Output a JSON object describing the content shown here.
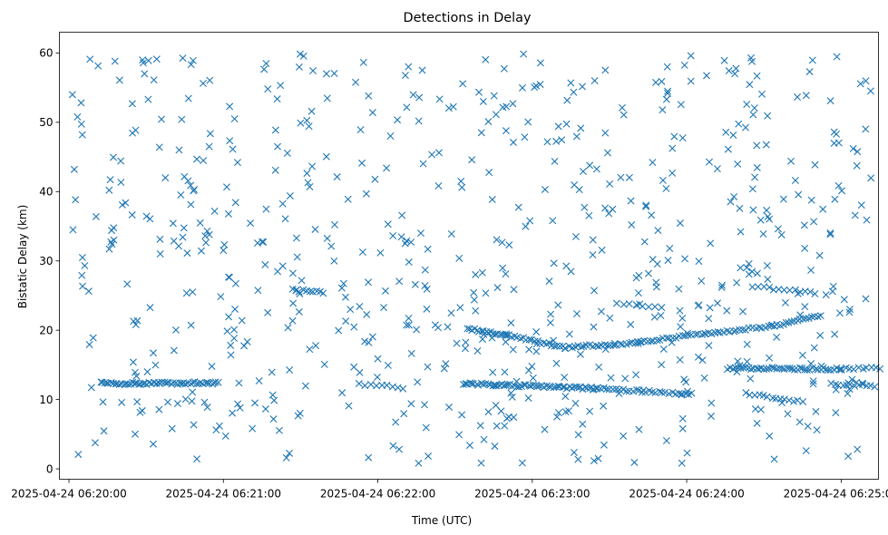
{
  "chart_data": {
    "type": "scatter",
    "title": "Detections in Delay",
    "xlabel": "Time (UTC)",
    "ylabel": "Bistatic Delay (km)",
    "x_unit": "seconds after 2025-04-24 06:20:00",
    "xlim": [
      -3.7,
      314.5
    ],
    "ylim": [
      -1.5,
      63.0
    ],
    "xticks": [
      {
        "value": 0,
        "label": "2025-04-24 06:20:00"
      },
      {
        "value": 60,
        "label": "2025-04-24 06:21:00"
      },
      {
        "value": 120,
        "label": "2025-04-24 06:22:00"
      },
      {
        "value": 180,
        "label": "2025-04-24 06:23:00"
      },
      {
        "value": 240,
        "label": "2025-04-24 06:24:00"
      },
      {
        "value": 300,
        "label": "2025-04-24 06:25:00"
      }
    ],
    "yticks": [
      0,
      10,
      20,
      30,
      40,
      50,
      60
    ],
    "grid": false,
    "marker": "x",
    "series_color": "#1f77b4",
    "series": [
      {
        "name": "",
        "tracks": [
          {
            "x": [
              13,
              58
            ],
            "y": [
              12.3,
              12.4
            ],
            "n": 55
          },
          {
            "x": [
              153,
              205
            ],
            "y": [
              12.3,
              11.6
            ],
            "n": 60
          },
          {
            "x": [
              205,
              242
            ],
            "y": [
              11.6,
              10.8
            ],
            "n": 30
          },
          {
            "x": [
              256,
              300
            ],
            "y": [
              14.5,
              14.4
            ],
            "n": 45
          },
          {
            "x": [
              300,
              315
            ],
            "y": [
              14.5,
              14.6
            ],
            "n": 10
          },
          {
            "x": [
              155,
              170
            ],
            "y": [
              20.2,
              19.3
            ],
            "n": 18
          },
          {
            "x": [
              170,
              193
            ],
            "y": [
              19.3,
              17.5
            ],
            "n": 22
          },
          {
            "x": [
              193,
              221
            ],
            "y": [
              17.5,
              18.2
            ],
            "n": 25
          },
          {
            "x": [
              221,
              247
            ],
            "y": [
              18.2,
              19.5
            ],
            "n": 22
          },
          {
            "x": [
              247,
              273
            ],
            "y": [
              19.5,
              20.6
            ],
            "n": 22
          },
          {
            "x": [
              273,
              292
            ],
            "y": [
              20.6,
              22
            ],
            "n": 18
          },
          {
            "x": [
              268,
              290
            ],
            "y": [
              26.2,
              25.4
            ],
            "n": 12
          },
          {
            "x": [
              87,
              99
            ],
            "y": [
              25.8,
              25.4
            ],
            "n": 10
          },
          {
            "x": [
              263,
              285
            ],
            "y": [
              10.8,
              9.7
            ],
            "n": 14
          },
          {
            "x": [
              296,
              313
            ],
            "y": [
              12.3,
              11.9
            ],
            "n": 12
          },
          {
            "x": [
              113,
              130
            ],
            "y": [
              12.2,
              11.7
            ],
            "n": 9
          },
          {
            "x": [
              213,
              230
            ],
            "y": [
              23.8,
              23.3
            ],
            "n": 8
          }
        ],
        "scatter_seed": 20250424,
        "scatter_count": 700,
        "scatter_xrange": [
          0,
          312
        ],
        "scatter_yrange": [
          0.8,
          60
        ]
      }
    ]
  }
}
